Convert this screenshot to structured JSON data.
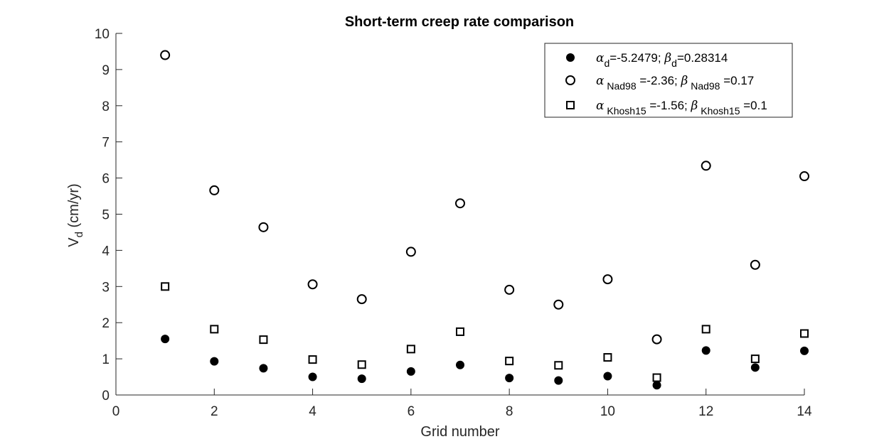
{
  "chart_data": {
    "type": "scatter",
    "title": "Short-term creep rate comparison",
    "xlabel": "Grid number",
    "ylabel": {
      "main": "V",
      "sub": "d",
      "unit": " (cm/yr)"
    },
    "xlim": [
      0,
      14
    ],
    "ylim": [
      0,
      10
    ],
    "xticks": [
      "0",
      "2",
      "4",
      "6",
      "8",
      "10",
      "12",
      "14"
    ],
    "yticks": [
      "0",
      "1",
      "2",
      "3",
      "4",
      "5",
      "6",
      "7",
      "8",
      "9",
      "10"
    ],
    "grid": false,
    "legend_position": "top-right",
    "x": [
      1,
      2,
      3,
      4,
      5,
      6,
      7,
      8,
      9,
      10,
      11,
      12,
      13,
      14
    ],
    "series": [
      {
        "marker": "filled-circle",
        "legend": {
          "parts": [
            {
              "t": "α",
              "greek": true
            },
            {
              "t": "d",
              "sub": true
            },
            {
              "t": "=-5.2479; "
            },
            {
              "t": "β",
              "greek": true
            },
            {
              "t": "d",
              "sub": true
            },
            {
              "t": "=0.28314"
            }
          ]
        },
        "values": [
          1.55,
          0.93,
          0.74,
          0.5,
          0.45,
          0.65,
          0.83,
          0.47,
          0.4,
          0.52,
          0.27,
          1.23,
          0.76,
          1.22
        ]
      },
      {
        "marker": "open-circle",
        "legend": {
          "parts": [
            {
              "t": "α",
              "greek": true
            },
            {
              "t": " Nad98",
              "sub": true
            },
            {
              "t": " =-2.36; "
            },
            {
              "t": "β",
              "greek": true
            },
            {
              "t": " Nad98",
              "sub": true
            },
            {
              "t": " =0.17"
            }
          ]
        },
        "values": [
          9.4,
          5.66,
          4.64,
          3.06,
          2.65,
          3.96,
          5.3,
          2.91,
          2.5,
          3.2,
          1.54,
          6.34,
          3.6,
          6.05
        ]
      },
      {
        "marker": "open-square",
        "legend": {
          "parts": [
            {
              "t": "α",
              "greek": true
            },
            {
              "t": " Khosh15",
              "sub": true
            },
            {
              "t": " =-1.56; "
            },
            {
              "t": "β",
              "greek": true
            },
            {
              "t": " Khosh15",
              "sub": true
            },
            {
              "t": " =0.1"
            }
          ]
        },
        "values": [
          3.0,
          1.82,
          1.53,
          0.98,
          0.84,
          1.27,
          1.75,
          0.94,
          0.82,
          1.04,
          0.48,
          1.82,
          1.0,
          1.7
        ]
      }
    ],
    "colors": {
      "axis": "#262626",
      "marker": "#000000",
      "background": "#ffffff"
    }
  }
}
